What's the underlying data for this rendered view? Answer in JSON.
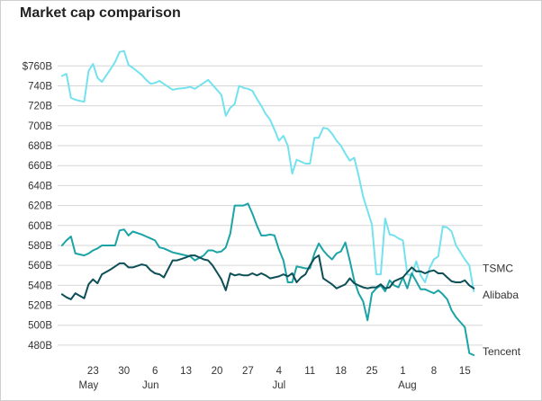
{
  "chart_data": {
    "type": "line",
    "title": "Market cap comparison",
    "y_tick_labels": [
      "$760B",
      "740B",
      "720B",
      "700B",
      "680B",
      "660B",
      "640B",
      "620B",
      "600B",
      "580B",
      "560B",
      "540B",
      "520B",
      "500B",
      "480B"
    ],
    "y_tick_values": [
      760,
      740,
      720,
      700,
      680,
      660,
      640,
      620,
      600,
      580,
      560,
      540,
      520,
      500,
      480
    ],
    "ylim": [
      470,
      772
    ],
    "x_tick_labels": [
      "23",
      "30",
      "6",
      "13",
      "20",
      "27",
      "4",
      "11",
      "18",
      "25",
      "1",
      "8",
      "15"
    ],
    "x_tick_values": [
      23,
      30,
      37,
      44,
      51,
      58,
      65,
      72,
      79,
      86,
      93,
      100,
      107
    ],
    "x_month_labels": [
      "May",
      "Jun",
      "Jul",
      "Aug"
    ],
    "x_month_positions": [
      22,
      36,
      65,
      94
    ],
    "xlim": [
      15,
      111
    ],
    "grid": "horizontal",
    "series": [
      {
        "name": "Alibaba",
        "color": "#74e2ee",
        "x": [
          16,
          17,
          18,
          19,
          21,
          22,
          23,
          24,
          25,
          27,
          28,
          29,
          30,
          31,
          32,
          34,
          35,
          36,
          37,
          38,
          39,
          41,
          42,
          44,
          45,
          46,
          48,
          49,
          50,
          51,
          52,
          53,
          54,
          55,
          56,
          57,
          58,
          59,
          60,
          61,
          62,
          63,
          64,
          65,
          66,
          67,
          68,
          69,
          70,
          71,
          72,
          73,
          74,
          75,
          76,
          77,
          78,
          79,
          80,
          81,
          82,
          83,
          84,
          85,
          86,
          87,
          88,
          89,
          90,
          91,
          92,
          93,
          94,
          95,
          96,
          97,
          98,
          99,
          100,
          101,
          102,
          103,
          104,
          105,
          106,
          107,
          108,
          109
        ],
        "values": [
          750,
          752,
          728,
          726,
          724,
          755,
          762,
          748,
          744,
          757,
          764,
          774,
          775,
          761,
          758,
          751,
          746,
          742,
          743,
          745,
          742,
          736,
          737,
          738,
          739,
          737,
          743,
          746,
          741,
          736,
          731,
          710,
          718,
          722,
          740,
          738,
          737,
          735,
          727,
          720,
          712,
          706,
          696,
          685,
          690,
          680,
          652,
          666,
          664,
          662,
          662,
          688,
          688,
          698,
          697,
          692,
          685,
          680,
          672,
          665,
          668,
          650,
          629,
          615,
          601,
          551,
          551,
          607,
          591,
          590,
          587,
          585,
          551,
          550,
          564,
          550,
          543,
          557,
          566,
          569,
          599,
          598,
          594,
          580,
          573,
          566,
          560,
          534
        ]
      },
      {
        "name": "Tencent",
        "color": "#1ba3a6",
        "x": [
          16,
          17,
          18,
          19,
          21,
          22,
          23,
          24,
          25,
          27,
          28,
          29,
          30,
          31,
          32,
          34,
          35,
          36,
          37,
          38,
          39,
          41,
          42,
          44,
          45,
          46,
          48,
          49,
          50,
          51,
          52,
          53,
          54,
          55,
          56,
          57,
          58,
          59,
          60,
          61,
          62,
          63,
          64,
          65,
          66,
          67,
          68,
          69,
          70,
          71,
          72,
          73,
          74,
          75,
          76,
          77,
          78,
          79,
          80,
          81,
          82,
          83,
          84,
          85,
          86,
          87,
          88,
          89,
          90,
          91,
          92,
          93,
          94,
          95,
          96,
          97,
          98,
          99,
          100,
          101,
          102,
          103,
          104,
          105,
          106,
          107,
          108,
          109
        ],
        "values": [
          580,
          585,
          589,
          572,
          570,
          572,
          575,
          577,
          580,
          580,
          580,
          595,
          596,
          590,
          594,
          591,
          589,
          587,
          585,
          578,
          577,
          573,
          572,
          570,
          569,
          565,
          570,
          575,
          575,
          573,
          574,
          578,
          592,
          620,
          620,
          620,
          622,
          612,
          600,
          590,
          590,
          591,
          590,
          576,
          565,
          543,
          543,
          559,
          558,
          557,
          557,
          572,
          582,
          575,
          570,
          566,
          572,
          574,
          583,
          565,
          545,
          532,
          524,
          505,
          532,
          537,
          540,
          534,
          545,
          540,
          538,
          548,
          537,
          552,
          544,
          536,
          536,
          534,
          532,
          535,
          531,
          526,
          515,
          508,
          503,
          498,
          472,
          470
        ]
      },
      {
        "name": "TSMC",
        "color": "#0d4f57",
        "x": [
          16,
          17,
          18,
          19,
          21,
          22,
          23,
          24,
          25,
          27,
          28,
          29,
          30,
          31,
          32,
          34,
          35,
          36,
          37,
          38,
          39,
          41,
          42,
          44,
          45,
          46,
          48,
          49,
          50,
          51,
          52,
          53,
          54,
          55,
          56,
          57,
          58,
          59,
          60,
          61,
          62,
          63,
          64,
          65,
          66,
          67,
          68,
          69,
          70,
          71,
          72,
          73,
          74,
          75,
          76,
          77,
          78,
          79,
          80,
          81,
          82,
          83,
          84,
          85,
          86,
          87,
          88,
          89,
          90,
          91,
          92,
          93,
          94,
          95,
          96,
          97,
          98,
          99,
          100,
          101,
          102,
          103,
          104,
          105,
          106,
          107,
          108,
          109
        ],
        "values": [
          531,
          528,
          526,
          532,
          527,
          541,
          546,
          542,
          551,
          556,
          559,
          562,
          562,
          558,
          558,
          561,
          560,
          555,
          552,
          551,
          548,
          565,
          565,
          568,
          570,
          570,
          566,
          565,
          560,
          553,
          546,
          535,
          552,
          550,
          551,
          550,
          550,
          552,
          550,
          552,
          550,
          547,
          548,
          549,
          551,
          549,
          552,
          543,
          548,
          551,
          560,
          567,
          570,
          547,
          544,
          541,
          537,
          539,
          541,
          547,
          542,
          540,
          538,
          537,
          538,
          538,
          541,
          537,
          538,
          544,
          546,
          548,
          553,
          558,
          554,
          554,
          552,
          554,
          555,
          552,
          552,
          548,
          544,
          543,
          543,
          545,
          540,
          537
        ]
      }
    ]
  }
}
